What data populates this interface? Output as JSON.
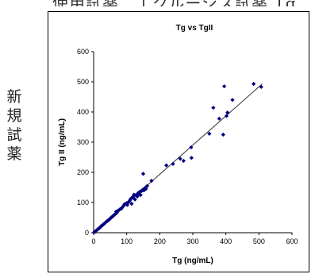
{
  "top_text": "使用試薬　エクルーシス試薬 Tg",
  "side_label_chars": [
    "新",
    "規",
    "試",
    "薬"
  ],
  "colors": {
    "marker": "#000080",
    "line": "#333333",
    "axis": "#000000"
  },
  "chart_data": {
    "type": "scatter",
    "title": "Tg vs TgII",
    "xlabel": "Tg (ng/mL)",
    "ylabel": "Tg II (ng/mL)",
    "xlim": [
      0,
      600
    ],
    "ylim": [
      0,
      600
    ],
    "xticks": [
      0,
      100,
      200,
      300,
      400,
      500,
      600
    ],
    "yticks": [
      0,
      100,
      200,
      300,
      400,
      500,
      600
    ],
    "grid": false,
    "legend": "none",
    "regression_line": {
      "x": [
        0,
        510
      ],
      "y": [
        0,
        493
      ]
    },
    "points": [
      [
        2,
        2
      ],
      [
        4,
        3
      ],
      [
        6,
        5
      ],
      [
        8,
        7
      ],
      [
        10,
        9
      ],
      [
        12,
        11
      ],
      [
        14,
        13
      ],
      [
        16,
        14
      ],
      [
        18,
        16
      ],
      [
        20,
        18
      ],
      [
        22,
        21
      ],
      [
        24,
        23
      ],
      [
        26,
        24
      ],
      [
        28,
        26
      ],
      [
        30,
        28
      ],
      [
        32,
        30
      ],
      [
        34,
        32
      ],
      [
        36,
        34
      ],
      [
        38,
        36
      ],
      [
        40,
        38
      ],
      [
        42,
        39
      ],
      [
        45,
        42
      ],
      [
        48,
        44
      ],
      [
        50,
        47
      ],
      [
        53,
        50
      ],
      [
        55,
        52
      ],
      [
        58,
        54
      ],
      [
        60,
        57
      ],
      [
        63,
        60
      ],
      [
        66,
        62
      ],
      [
        68,
        70
      ],
      [
        70,
        66
      ],
      [
        73,
        72
      ],
      [
        76,
        74
      ],
      [
        80,
        78
      ],
      [
        84,
        80
      ],
      [
        88,
        86
      ],
      [
        90,
        88
      ],
      [
        93,
        94
      ],
      [
        96,
        95
      ],
      [
        100,
        98
      ],
      [
        102,
        92
      ],
      [
        105,
        101
      ],
      [
        108,
        104
      ],
      [
        110,
        108
      ],
      [
        112,
        112
      ],
      [
        115,
        96
      ],
      [
        118,
        118
      ],
      [
        120,
        116
      ],
      [
        122,
        126
      ],
      [
        125,
        110
      ],
      [
        128,
        125
      ],
      [
        130,
        122
      ],
      [
        132,
        120
      ],
      [
        135,
        132
      ],
      [
        138,
        128
      ],
      [
        140,
        136
      ],
      [
        142,
        125
      ],
      [
        145,
        138
      ],
      [
        148,
        142
      ],
      [
        150,
        195
      ],
      [
        152,
        140
      ],
      [
        155,
        148
      ],
      [
        158,
        145
      ],
      [
        162,
        155
      ],
      [
        175,
        172
      ],
      [
        220,
        223
      ],
      [
        240,
        228
      ],
      [
        262,
        245
      ],
      [
        272,
        238
      ],
      [
        295,
        283
      ],
      [
        296,
        248
      ],
      [
        350,
        328
      ],
      [
        362,
        414
      ],
      [
        380,
        378
      ],
      [
        392,
        325
      ],
      [
        395,
        485
      ],
      [
        402,
        387
      ],
      [
        405,
        398
      ],
      [
        420,
        440
      ],
      [
        484,
        493
      ],
      [
        507,
        483
      ]
    ]
  }
}
